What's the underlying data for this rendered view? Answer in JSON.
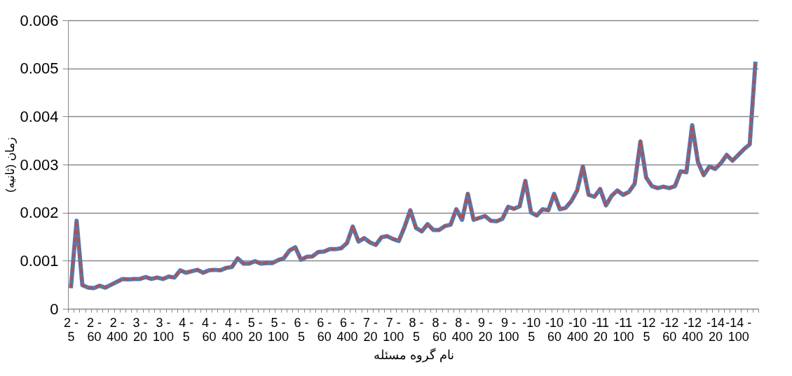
{
  "chart_data": {
    "type": "line",
    "xlabel": "نام گروه مسئله",
    "ylabel": "زمان (ثانیه)",
    "categories": [
      "2 -\n5",
      null,
      null,
      null,
      "2 -\n60",
      null,
      null,
      null,
      "2 -\n400",
      null,
      null,
      null,
      "3 -\n20",
      null,
      null,
      null,
      "3 -\n100",
      null,
      null,
      null,
      "4 -\n5",
      null,
      null,
      null,
      "4 -\n60",
      null,
      null,
      null,
      "4 -\n400",
      null,
      null,
      null,
      "5 -\n20",
      null,
      null,
      null,
      "5 -\n100",
      null,
      null,
      null,
      "6 -\n5",
      null,
      null,
      null,
      "6 -\n60",
      null,
      null,
      null,
      "6 -\n400",
      null,
      null,
      null,
      "7 -\n20",
      null,
      null,
      null,
      "7 -\n100",
      null,
      null,
      null,
      "8 -\n5",
      null,
      null,
      null,
      "8 -\n60",
      null,
      null,
      null,
      "8 -\n400",
      null,
      null,
      null,
      "9 -\n20",
      null,
      null,
      null,
      "9 -\n100",
      null,
      null,
      null,
      "-10\n5",
      null,
      null,
      null,
      "-10\n60",
      null,
      null,
      null,
      "-10\n400",
      null,
      null,
      null,
      "-11\n20",
      null,
      null,
      null,
      "-11\n100",
      null,
      null,
      null,
      "-12\n5",
      null,
      null,
      null,
      "-12\n60",
      null,
      null,
      null,
      "-12\n400",
      null,
      null,
      null,
      "-14\n20",
      null,
      null,
      null,
      "-14 -\n100",
      null,
      null,
      null
    ],
    "series": [
      {
        "color": "#4a7ebb",
        "line_style": "solid",
        "values": [
          0.00043,
          0.00183,
          0.00049,
          0.00044,
          0.00043,
          0.00048,
          0.00044,
          0.0005,
          0.00056,
          0.00062,
          0.00061,
          0.00062,
          0.00062,
          0.00066,
          0.00062,
          0.00065,
          0.00062,
          0.00067,
          0.00065,
          0.0008,
          0.00075,
          0.00078,
          0.00081,
          0.00075,
          0.0008,
          0.00081,
          0.0008,
          0.00085,
          0.00087,
          0.00105,
          0.00094,
          0.00094,
          0.00099,
          0.00094,
          0.00095,
          0.00095,
          0.00101,
          0.00105,
          0.00121,
          0.00128,
          0.00102,
          0.00108,
          0.00109,
          0.00118,
          0.00119,
          0.00124,
          0.00124,
          0.00126,
          0.00137,
          0.00171,
          0.0014,
          0.00147,
          0.00138,
          0.00133,
          0.00149,
          0.00151,
          0.00145,
          0.00141,
          0.0017,
          0.00205,
          0.00168,
          0.00161,
          0.00176,
          0.00164,
          0.00164,
          0.00172,
          0.00175,
          0.00207,
          0.00185,
          0.00239,
          0.00185,
          0.00189,
          0.00193,
          0.00183,
          0.00182,
          0.00187,
          0.00212,
          0.00208,
          0.00213,
          0.00266,
          0.002,
          0.00194,
          0.00207,
          0.00205,
          0.00239,
          0.00207,
          0.0021,
          0.00224,
          0.00246,
          0.00296,
          0.00237,
          0.00233,
          0.00249,
          0.00215,
          0.00235,
          0.00246,
          0.00237,
          0.00243,
          0.0026,
          0.00348,
          0.00273,
          0.00255,
          0.00251,
          0.00254,
          0.00251,
          0.00255,
          0.00286,
          0.00284,
          0.00382,
          0.00305,
          0.00278,
          0.00296,
          0.00291,
          0.00303,
          0.0032,
          0.00308,
          0.0032,
          0.00332,
          0.00342,
          0.00514
        ]
      },
      {
        "color": "#be4b48",
        "line_style": "dashed",
        "values": [
          0.00043,
          0.00183,
          0.00049,
          0.00044,
          0.00043,
          0.00048,
          0.00044,
          0.0005,
          0.00056,
          0.00062,
          0.00061,
          0.00062,
          0.00062,
          0.00066,
          0.00062,
          0.00065,
          0.00062,
          0.00067,
          0.00065,
          0.0008,
          0.00075,
          0.00078,
          0.00081,
          0.00075,
          0.0008,
          0.00081,
          0.0008,
          0.00085,
          0.00087,
          0.00105,
          0.00094,
          0.00094,
          0.00099,
          0.00094,
          0.00095,
          0.00095,
          0.00101,
          0.00105,
          0.00121,
          0.00128,
          0.00102,
          0.00108,
          0.00109,
          0.00118,
          0.00119,
          0.00124,
          0.00124,
          0.00126,
          0.00137,
          0.00171,
          0.0014,
          0.00147,
          0.00138,
          0.00133,
          0.00149,
          0.00151,
          0.00145,
          0.00141,
          0.0017,
          0.00205,
          0.00168,
          0.00161,
          0.00176,
          0.00164,
          0.00164,
          0.00172,
          0.00175,
          0.00207,
          0.00185,
          0.00239,
          0.00185,
          0.00189,
          0.00193,
          0.00183,
          0.00182,
          0.00187,
          0.00212,
          0.00208,
          0.00213,
          0.00266,
          0.002,
          0.00194,
          0.00207,
          0.00205,
          0.00239,
          0.00207,
          0.0021,
          0.00224,
          0.00246,
          0.00296,
          0.00237,
          0.00233,
          0.00249,
          0.00215,
          0.00235,
          0.00246,
          0.00237,
          0.00243,
          0.0026,
          0.00348,
          0.00273,
          0.00255,
          0.00251,
          0.00254,
          0.00251,
          0.00255,
          0.00286,
          0.00284,
          0.00382,
          0.00305,
          0.00278,
          0.00296,
          0.00291,
          0.00303,
          0.0032,
          0.00308,
          0.0032,
          0.00332,
          0.00342,
          0.00514
        ]
      }
    ],
    "ylim": [
      0,
      0.006
    ],
    "yticks": [
      0,
      0.001,
      0.002,
      0.003,
      0.004,
      0.005,
      0.006
    ],
    "grid": "y",
    "legend": false
  }
}
